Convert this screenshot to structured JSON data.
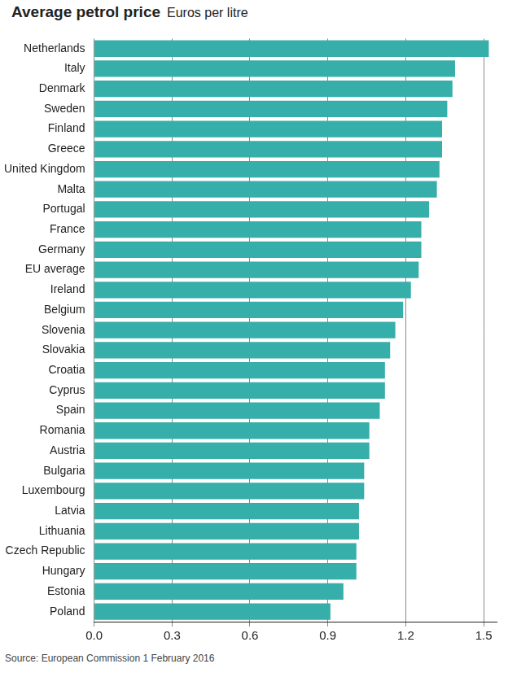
{
  "chart_data": {
    "type": "bar",
    "orientation": "horizontal",
    "title": "Average petrol price",
    "subtitle": "Euros per litre",
    "source": "Source: European Commission 1 February 2016",
    "categories": [
      "Netherlands",
      "Italy",
      "Denmark",
      "Sweden",
      "Finland",
      "Greece",
      "United Kingdom",
      "Malta",
      "Portugal",
      "France",
      "Germany",
      "EU average",
      "Ireland",
      "Belgium",
      "Slovenia",
      "Slovakia",
      "Croatia",
      "Cyprus",
      "Spain",
      "Romania",
      "Austria",
      "Bulgaria",
      "Luxembourg",
      "Latvia",
      "Lithuania",
      "Czech Republic",
      "Hungary",
      "Estonia",
      "Poland"
    ],
    "values": [
      1.52,
      1.39,
      1.38,
      1.36,
      1.34,
      1.34,
      1.33,
      1.32,
      1.29,
      1.26,
      1.26,
      1.25,
      1.22,
      1.19,
      1.16,
      1.14,
      1.12,
      1.12,
      1.1,
      1.06,
      1.06,
      1.04,
      1.04,
      1.02,
      1.02,
      1.01,
      1.01,
      0.96,
      0.91
    ],
    "color": "#36aeaa",
    "xlim": [
      0,
      1.55
    ],
    "xticks": [
      {
        "value": 0,
        "label": "0.0"
      },
      0.3,
      0.6,
      0.9,
      1.2,
      1.5
    ],
    "grid": true
  }
}
